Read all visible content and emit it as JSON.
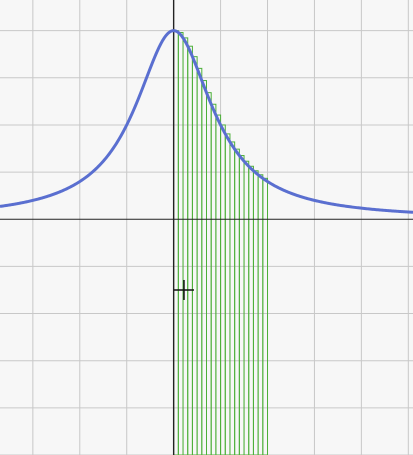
{
  "chart_data": {
    "type": "area",
    "title": "",
    "xlabel": "",
    "ylabel": "",
    "grid": true,
    "xlim": [
      -3.7,
      5.1
    ],
    "ylim": [
      -5,
      4.65
    ],
    "x_axis_at_y": 0,
    "y_axis_at_x": 0,
    "series": [
      {
        "type": "line",
        "function": "4 / (1 + x^2)",
        "x_range": [
          -3.7,
          5.1
        ],
        "color": "#5a6fd0",
        "points": [
          [
            -3.7,
            0.27
          ],
          [
            -3,
            0.4
          ],
          [
            -2,
            0.8
          ],
          [
            -1,
            2.0
          ],
          [
            0,
            4.0
          ],
          [
            1,
            2.0
          ],
          [
            2,
            0.8
          ],
          [
            3,
            0.4
          ],
          [
            4,
            0.235
          ],
          [
            5,
            0.154
          ]
        ]
      },
      {
        "type": "riemann-rectangles",
        "x_range": [
          0,
          2
        ],
        "strip_count": 20,
        "fill_to_y": -5,
        "color": "#4caf38"
      }
    ],
    "annotations": [
      {
        "type": "cursor-crosshair",
        "x": 0.22,
        "y": -1.5
      }
    ],
    "colors": {
      "background": "#f7f7f7",
      "grid": "#c8c8c8",
      "axis": "#222222",
      "curve": "#5a6fd0",
      "strips": "#4caf38"
    }
  }
}
